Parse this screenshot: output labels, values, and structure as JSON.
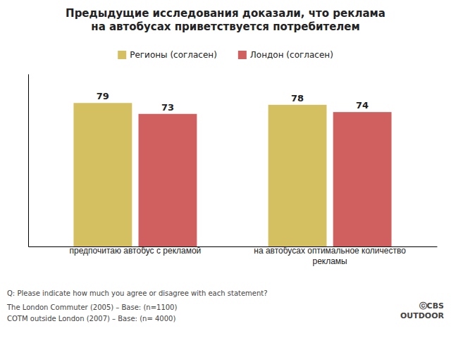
{
  "chart_data": {
    "type": "bar",
    "title": "Предыдущие исследования доказали, что реклама\nна автобусах приветствуется потребителем",
    "categories": [
      "предпочитаю автобус с рекламой",
      "на автобусах оптимальное количество\nрекламы"
    ],
    "series": [
      {
        "name": "Регионы (согласен)",
        "color": "#D4C060",
        "values": [
          79,
          78
        ]
      },
      {
        "name": "Лондон (согласен)",
        "color": "#D06060",
        "values": [
          73,
          74
        ]
      }
    ],
    "ylim": [
      0,
      95
    ],
    "data_labels": true,
    "tick_labels": "x",
    "legend": "top",
    "annotations": [
      "Q: Please indicate how much you agree or disagree with each statement?",
      "The London Commuter (2005) – Base: (n=1100)",
      "COTM outside London (2007) – Base: (n= 4000)",
      "ⓒCBS\nOUTDOOR"
    ]
  }
}
